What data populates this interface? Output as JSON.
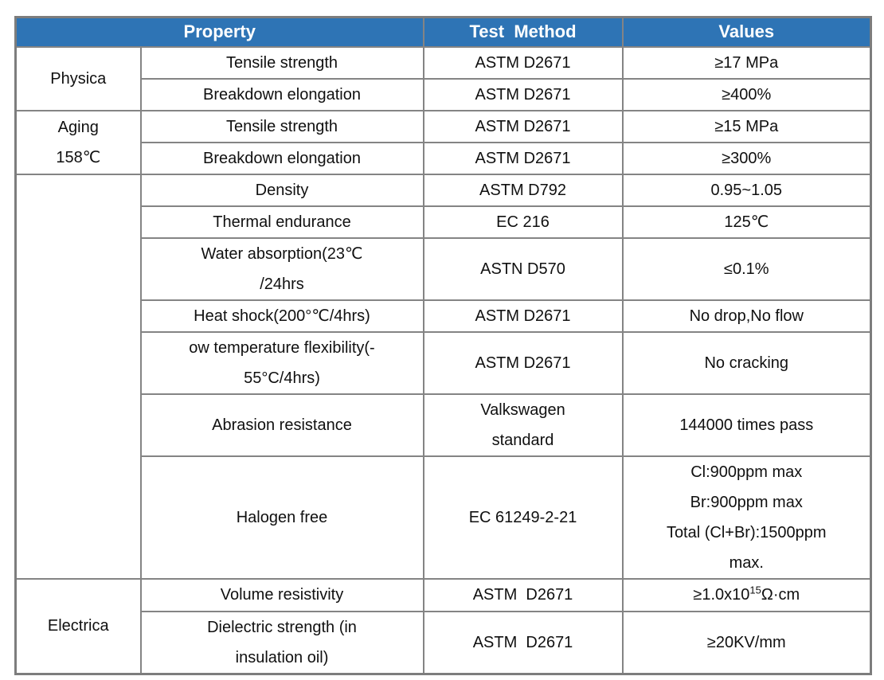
{
  "table": {
    "header": {
      "property": "Property",
      "test_method": "Test  Method",
      "values": "Values"
    },
    "groups": {
      "physical": "Physica",
      "aging": "Aging\n158℃",
      "other": "",
      "electrical": "Electrica"
    },
    "rows": [
      {
        "property": "Tensile strength",
        "method": "ASTM D2671",
        "value": "≥17 MPa"
      },
      {
        "property": "Breakdown elongation",
        "method": "ASTM D2671",
        "value": "≥400%"
      },
      {
        "property": "Tensile strength",
        "method": "ASTM D2671",
        "value": "≥15 MPa"
      },
      {
        "property": "Breakdown elongation",
        "method": "ASTM D2671",
        "value": "≥300%"
      },
      {
        "property": "Density",
        "method": "ASTM D792",
        "value": "0.95~1.05"
      },
      {
        "property": "Thermal endurance",
        "method": "EC 216",
        "value": "125℃"
      },
      {
        "property": "Water absorption(23℃\n/24hrs",
        "method": "ASTN D570",
        "value": "≤0.1%"
      },
      {
        "property": "Heat shock(200°℃/4hrs)",
        "method": "ASTM D2671",
        "value": "No drop,No flow"
      },
      {
        "property": "ow temperature flexibility(-\n55°C/4hrs)",
        "method": "ASTM D2671",
        "value": "No cracking"
      },
      {
        "property": "Abrasion resistance",
        "method": "Valkswagen\nstandard",
        "value": "144000 times pass"
      },
      {
        "property": "Halogen free",
        "method": "EC 61249-2-21",
        "value": "Cl:900ppm max\nBr:900ppm max\nTotal (Cl+Br):1500ppm\nmax."
      },
      {
        "property": "Volume resistivity",
        "method": "ASTM  D2671",
        "value_prefix": "≥1.0x10",
        "value_sup": "15",
        "value_suffix": "Ω·cm"
      },
      {
        "property": "Dielectric strength (in\ninsulation oil)",
        "method": "ASTM  D2671",
        "value": "≥20KV/mm"
      }
    ]
  }
}
